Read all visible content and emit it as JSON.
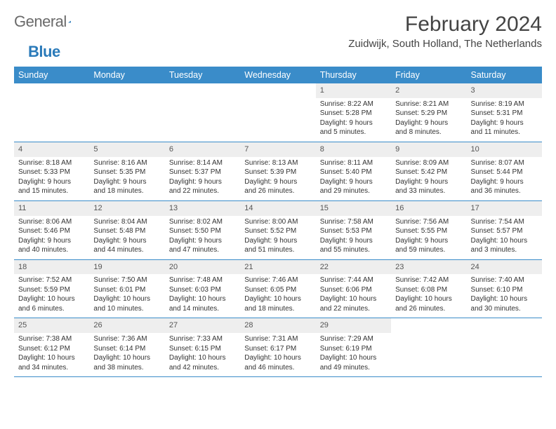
{
  "logo": {
    "text1": "General",
    "text2": "Blue"
  },
  "title": "February 2024",
  "location": "Zuidwijk, South Holland, The Netherlands",
  "colors": {
    "header_bg": "#3a8cc9",
    "daynum_bg": "#eeeeee",
    "rule": "#3a8cc9",
    "text": "#333333"
  },
  "weekdays": [
    "Sunday",
    "Monday",
    "Tuesday",
    "Wednesday",
    "Thursday",
    "Friday",
    "Saturday"
  ],
  "weeks": [
    [
      {
        "n": "",
        "sr": "",
        "ss": "",
        "dl1": "",
        "dl2": ""
      },
      {
        "n": "",
        "sr": "",
        "ss": "",
        "dl1": "",
        "dl2": ""
      },
      {
        "n": "",
        "sr": "",
        "ss": "",
        "dl1": "",
        "dl2": ""
      },
      {
        "n": "",
        "sr": "",
        "ss": "",
        "dl1": "",
        "dl2": ""
      },
      {
        "n": "1",
        "sr": "Sunrise: 8:22 AM",
        "ss": "Sunset: 5:28 PM",
        "dl1": "Daylight: 9 hours",
        "dl2": "and 5 minutes."
      },
      {
        "n": "2",
        "sr": "Sunrise: 8:21 AM",
        "ss": "Sunset: 5:29 PM",
        "dl1": "Daylight: 9 hours",
        "dl2": "and 8 minutes."
      },
      {
        "n": "3",
        "sr": "Sunrise: 8:19 AM",
        "ss": "Sunset: 5:31 PM",
        "dl1": "Daylight: 9 hours",
        "dl2": "and 11 minutes."
      }
    ],
    [
      {
        "n": "4",
        "sr": "Sunrise: 8:18 AM",
        "ss": "Sunset: 5:33 PM",
        "dl1": "Daylight: 9 hours",
        "dl2": "and 15 minutes."
      },
      {
        "n": "5",
        "sr": "Sunrise: 8:16 AM",
        "ss": "Sunset: 5:35 PM",
        "dl1": "Daylight: 9 hours",
        "dl2": "and 18 minutes."
      },
      {
        "n": "6",
        "sr": "Sunrise: 8:14 AM",
        "ss": "Sunset: 5:37 PM",
        "dl1": "Daylight: 9 hours",
        "dl2": "and 22 minutes."
      },
      {
        "n": "7",
        "sr": "Sunrise: 8:13 AM",
        "ss": "Sunset: 5:39 PM",
        "dl1": "Daylight: 9 hours",
        "dl2": "and 26 minutes."
      },
      {
        "n": "8",
        "sr": "Sunrise: 8:11 AM",
        "ss": "Sunset: 5:40 PM",
        "dl1": "Daylight: 9 hours",
        "dl2": "and 29 minutes."
      },
      {
        "n": "9",
        "sr": "Sunrise: 8:09 AM",
        "ss": "Sunset: 5:42 PM",
        "dl1": "Daylight: 9 hours",
        "dl2": "and 33 minutes."
      },
      {
        "n": "10",
        "sr": "Sunrise: 8:07 AM",
        "ss": "Sunset: 5:44 PM",
        "dl1": "Daylight: 9 hours",
        "dl2": "and 36 minutes."
      }
    ],
    [
      {
        "n": "11",
        "sr": "Sunrise: 8:06 AM",
        "ss": "Sunset: 5:46 PM",
        "dl1": "Daylight: 9 hours",
        "dl2": "and 40 minutes."
      },
      {
        "n": "12",
        "sr": "Sunrise: 8:04 AM",
        "ss": "Sunset: 5:48 PM",
        "dl1": "Daylight: 9 hours",
        "dl2": "and 44 minutes."
      },
      {
        "n": "13",
        "sr": "Sunrise: 8:02 AM",
        "ss": "Sunset: 5:50 PM",
        "dl1": "Daylight: 9 hours",
        "dl2": "and 47 minutes."
      },
      {
        "n": "14",
        "sr": "Sunrise: 8:00 AM",
        "ss": "Sunset: 5:52 PM",
        "dl1": "Daylight: 9 hours",
        "dl2": "and 51 minutes."
      },
      {
        "n": "15",
        "sr": "Sunrise: 7:58 AM",
        "ss": "Sunset: 5:53 PM",
        "dl1": "Daylight: 9 hours",
        "dl2": "and 55 minutes."
      },
      {
        "n": "16",
        "sr": "Sunrise: 7:56 AM",
        "ss": "Sunset: 5:55 PM",
        "dl1": "Daylight: 9 hours",
        "dl2": "and 59 minutes."
      },
      {
        "n": "17",
        "sr": "Sunrise: 7:54 AM",
        "ss": "Sunset: 5:57 PM",
        "dl1": "Daylight: 10 hours",
        "dl2": "and 3 minutes."
      }
    ],
    [
      {
        "n": "18",
        "sr": "Sunrise: 7:52 AM",
        "ss": "Sunset: 5:59 PM",
        "dl1": "Daylight: 10 hours",
        "dl2": "and 6 minutes."
      },
      {
        "n": "19",
        "sr": "Sunrise: 7:50 AM",
        "ss": "Sunset: 6:01 PM",
        "dl1": "Daylight: 10 hours",
        "dl2": "and 10 minutes."
      },
      {
        "n": "20",
        "sr": "Sunrise: 7:48 AM",
        "ss": "Sunset: 6:03 PM",
        "dl1": "Daylight: 10 hours",
        "dl2": "and 14 minutes."
      },
      {
        "n": "21",
        "sr": "Sunrise: 7:46 AM",
        "ss": "Sunset: 6:05 PM",
        "dl1": "Daylight: 10 hours",
        "dl2": "and 18 minutes."
      },
      {
        "n": "22",
        "sr": "Sunrise: 7:44 AM",
        "ss": "Sunset: 6:06 PM",
        "dl1": "Daylight: 10 hours",
        "dl2": "and 22 minutes."
      },
      {
        "n": "23",
        "sr": "Sunrise: 7:42 AM",
        "ss": "Sunset: 6:08 PM",
        "dl1": "Daylight: 10 hours",
        "dl2": "and 26 minutes."
      },
      {
        "n": "24",
        "sr": "Sunrise: 7:40 AM",
        "ss": "Sunset: 6:10 PM",
        "dl1": "Daylight: 10 hours",
        "dl2": "and 30 minutes."
      }
    ],
    [
      {
        "n": "25",
        "sr": "Sunrise: 7:38 AM",
        "ss": "Sunset: 6:12 PM",
        "dl1": "Daylight: 10 hours",
        "dl2": "and 34 minutes."
      },
      {
        "n": "26",
        "sr": "Sunrise: 7:36 AM",
        "ss": "Sunset: 6:14 PM",
        "dl1": "Daylight: 10 hours",
        "dl2": "and 38 minutes."
      },
      {
        "n": "27",
        "sr": "Sunrise: 7:33 AM",
        "ss": "Sunset: 6:15 PM",
        "dl1": "Daylight: 10 hours",
        "dl2": "and 42 minutes."
      },
      {
        "n": "28",
        "sr": "Sunrise: 7:31 AM",
        "ss": "Sunset: 6:17 PM",
        "dl1": "Daylight: 10 hours",
        "dl2": "and 46 minutes."
      },
      {
        "n": "29",
        "sr": "Sunrise: 7:29 AM",
        "ss": "Sunset: 6:19 PM",
        "dl1": "Daylight: 10 hours",
        "dl2": "and 49 minutes."
      },
      {
        "n": "",
        "sr": "",
        "ss": "",
        "dl1": "",
        "dl2": ""
      },
      {
        "n": "",
        "sr": "",
        "ss": "",
        "dl1": "",
        "dl2": ""
      }
    ]
  ]
}
